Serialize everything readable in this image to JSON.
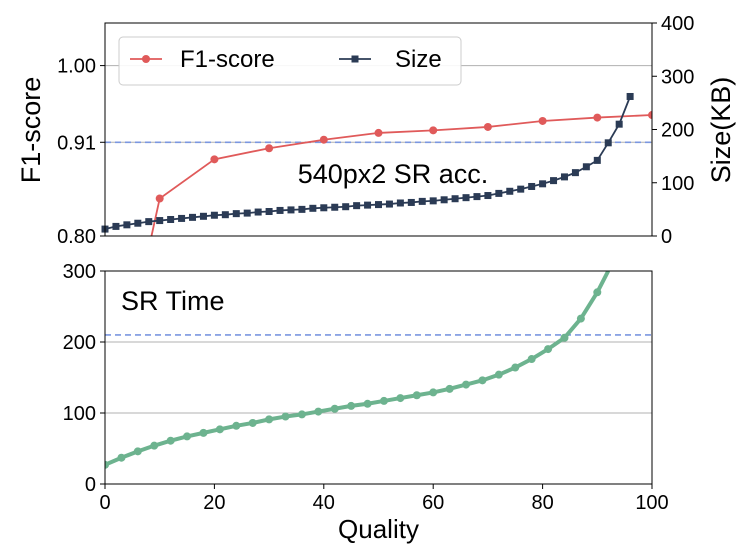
{
  "colors": {
    "f1": "#e05a5a",
    "size": "#2b3b55",
    "sr_time": "#6db38f",
    "ref_line": "#7b97e0",
    "grid": "#b0b0b0",
    "axis": "#000000"
  },
  "chart_data": [
    {
      "type": "line",
      "panel": "top",
      "annotation": "540px2 SR acc.",
      "xlabel": "",
      "ylabel": "F1-score",
      "ylabel_right": "Size(KB)",
      "xlim": [
        0,
        100
      ],
      "ylim": [
        0.8,
        1.05
      ],
      "ylim_right": [
        0,
        400
      ],
      "yticks": [
        0.8,
        0.91,
        1.0
      ],
      "ytick_labels": [
        "0.80",
        "0.91",
        "1.00"
      ],
      "yticks_right": [
        0,
        100,
        200,
        300,
        400
      ],
      "ytick_labels_right": [
        "0",
        "100",
        "200",
        "300",
        "400"
      ],
      "grid": "horizontal",
      "reference_line": {
        "axis": "left",
        "y": 0.91,
        "style": "dashed"
      },
      "legend_position": "top-left",
      "series": [
        {
          "name": "F1-score",
          "axis": "left",
          "marker": "circle",
          "x": [
            8.5,
            10,
            20,
            30,
            40,
            50,
            60,
            70,
            80,
            90,
            100
          ],
          "y": [
            0.8,
            0.844,
            0.89,
            0.903,
            0.913,
            0.921,
            0.924,
            0.928,
            0.935,
            0.939,
            0.942
          ]
        },
        {
          "name": "Size",
          "axis": "right",
          "marker": "square",
          "x": [
            0,
            2,
            4,
            6,
            8,
            10,
            12,
            14,
            16,
            18,
            20,
            22,
            24,
            26,
            28,
            30,
            32,
            34,
            36,
            38,
            40,
            42,
            44,
            46,
            48,
            50,
            52,
            54,
            56,
            58,
            60,
            62,
            64,
            66,
            68,
            70,
            72,
            74,
            76,
            78,
            80,
            82,
            84,
            86,
            88,
            90,
            92,
            94,
            96
          ],
          "y": [
            13,
            18,
            21,
            24,
            27,
            29,
            31,
            33,
            35,
            37,
            39,
            40,
            42,
            43,
            45,
            46,
            48,
            49,
            50,
            52,
            53,
            54,
            55,
            57,
            58,
            59,
            60,
            62,
            63,
            65,
            66,
            68,
            70,
            72,
            74,
            76,
            80,
            84,
            88,
            93,
            98,
            104,
            111,
            119,
            130,
            142,
            175,
            210,
            262
          ]
        }
      ]
    },
    {
      "type": "line",
      "panel": "bottom",
      "annotation": "SR Time",
      "xlabel": "Quality",
      "ylabel": "",
      "xlim": [
        0,
        100
      ],
      "ylim": [
        0,
        300
      ],
      "xticks": [
        0,
        20,
        40,
        60,
        80,
        100
      ],
      "xtick_labels": [
        "0",
        "20",
        "40",
        "60",
        "80",
        "100"
      ],
      "yticks": [
        0,
        100,
        200,
        300
      ],
      "ytick_labels": [
        "0",
        "100",
        "200",
        "300"
      ],
      "grid": "horizontal",
      "reference_line": {
        "axis": "left",
        "y": 210,
        "style": "dashed"
      },
      "series": [
        {
          "name": "",
          "axis": "left",
          "marker": "circle",
          "x": [
            0,
            3,
            6,
            9,
            12,
            15,
            18,
            21,
            24,
            27,
            30,
            33,
            36,
            39,
            42,
            45,
            48,
            51,
            54,
            57,
            60,
            63,
            66,
            69,
            72,
            75,
            78,
            81,
            84,
            87,
            90,
            92
          ],
          "y": [
            27,
            37,
            46,
            54,
            61,
            67,
            72,
            77,
            82,
            86,
            91,
            95,
            98,
            102,
            106,
            110,
            113,
            117,
            121,
            125,
            129,
            134,
            140,
            146,
            154,
            164,
            176,
            190,
            206,
            233,
            270,
            300
          ]
        }
      ]
    }
  ]
}
